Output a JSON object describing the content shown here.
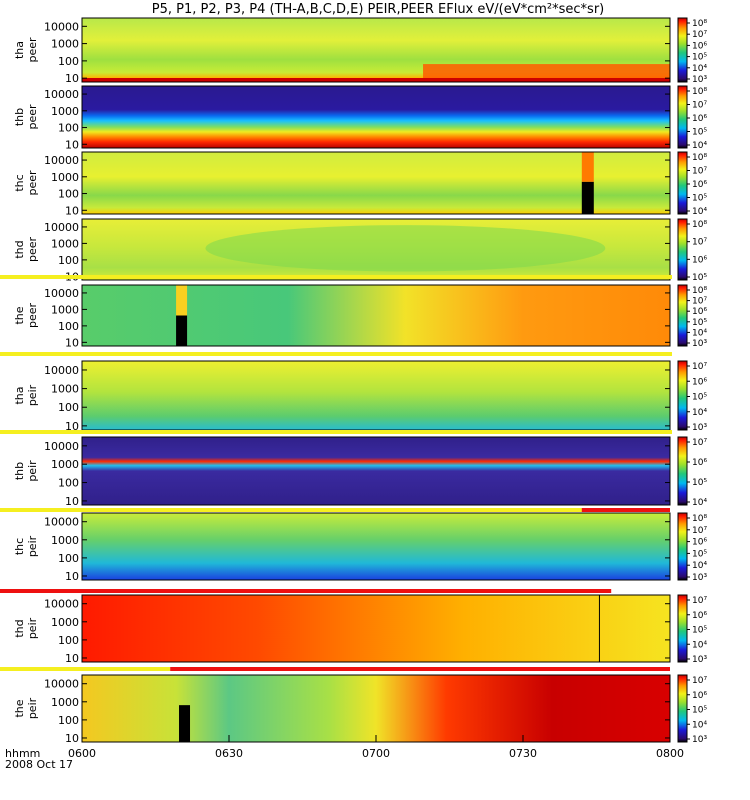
{
  "title": "P5, P1, P2, P3, P4 (TH-A,B,C,D,E) PEIR,PEER EFlux eV/(eV*cm²*sec*sr)",
  "x_axis": {
    "left_label": "hhmm",
    "date": "2008 Oct 17",
    "ticks": [
      "0600",
      "0630",
      "0700",
      "0730",
      "0800"
    ]
  },
  "chart_data": {
    "type": "heatmap",
    "title": "P5, P1, P2, P3, P4 (TH-A,B,C,D,E) PEIR,PEER EFlux eV/(eV*cm²*sec*sr)",
    "x": {
      "label": "hhmm",
      "range": [
        "0600",
        "0800"
      ],
      "ticks": [
        "0600",
        "0630",
        "0700",
        "0730",
        "0800"
      ]
    },
    "y_scale": "log",
    "panels": [
      {
        "probe": "tha",
        "species": "peer",
        "ylabel": [
          "tha",
          "peer"
        ],
        "yticks": [
          "10",
          "100",
          "1000",
          "10000"
        ],
        "cbar_ticks": [
          "10³",
          "10⁴",
          "10⁵",
          "10⁶",
          "10⁷",
          "10⁸"
        ]
      },
      {
        "probe": "thb",
        "species": "peer",
        "ylabel": [
          "thb",
          "peer"
        ],
        "yticks": [
          "10",
          "100",
          "1000",
          "10000"
        ],
        "cbar_ticks": [
          "10⁴",
          "10⁵",
          "10⁶",
          "10⁷",
          "10⁸"
        ]
      },
      {
        "probe": "thc",
        "species": "peer",
        "ylabel": [
          "thc",
          "peer"
        ],
        "yticks": [
          "10",
          "100",
          "1000",
          "10000"
        ],
        "cbar_ticks": [
          "10⁴",
          "10⁵",
          "10⁶",
          "10⁷",
          "10⁸"
        ]
      },
      {
        "probe": "thd",
        "species": "peer",
        "ylabel": [
          "thd",
          "peer"
        ],
        "yticks": [
          "10",
          "100",
          "1000",
          "10000"
        ],
        "cbar_ticks": [
          "10⁵",
          "10⁶",
          "10⁷",
          "10⁸"
        ]
      },
      {
        "probe": "the",
        "species": "peer",
        "ylabel": [
          "the",
          "peer"
        ],
        "yticks": [
          "10",
          "100",
          "1000",
          "10000"
        ],
        "cbar_ticks": [
          "10³",
          "10⁴",
          "10⁵",
          "10⁶",
          "10⁷",
          "10⁸"
        ]
      },
      {
        "probe": "tha",
        "species": "peir",
        "ylabel": [
          "tha",
          "peir"
        ],
        "yticks": [
          "10",
          "100",
          "1000",
          "10000"
        ],
        "cbar_ticks": [
          "10³",
          "10⁴",
          "10⁵",
          "10⁶",
          "10⁷"
        ]
      },
      {
        "probe": "thb",
        "species": "peir",
        "ylabel": [
          "thb",
          "peir"
        ],
        "yticks": [
          "10",
          "100",
          "1000",
          "10000"
        ],
        "cbar_ticks": [
          "10⁴",
          "10⁵",
          "10⁶",
          "10⁷"
        ]
      },
      {
        "probe": "thc",
        "species": "peir",
        "ylabel": [
          "thc",
          "peir"
        ],
        "yticks": [
          "10",
          "100",
          "1000",
          "10000"
        ],
        "cbar_ticks": [
          "10³",
          "10⁴",
          "10⁵",
          "10⁶",
          "10⁷",
          "10⁸"
        ]
      },
      {
        "probe": "thd",
        "species": "peir",
        "ylabel": [
          "thd",
          "peir"
        ],
        "yticks": [
          "10",
          "100",
          "1000",
          "10000"
        ],
        "cbar_ticks": [
          "10³",
          "10⁴",
          "10⁵",
          "10⁶",
          "10⁷"
        ]
      },
      {
        "probe": "the",
        "species": "peir",
        "ylabel": [
          "the",
          "peir"
        ],
        "yticks": [
          "10",
          "100",
          "1000",
          "10000"
        ],
        "cbar_ticks": [
          "10³",
          "10⁴",
          "10⁵",
          "10⁶",
          "10⁷"
        ]
      }
    ]
  }
}
